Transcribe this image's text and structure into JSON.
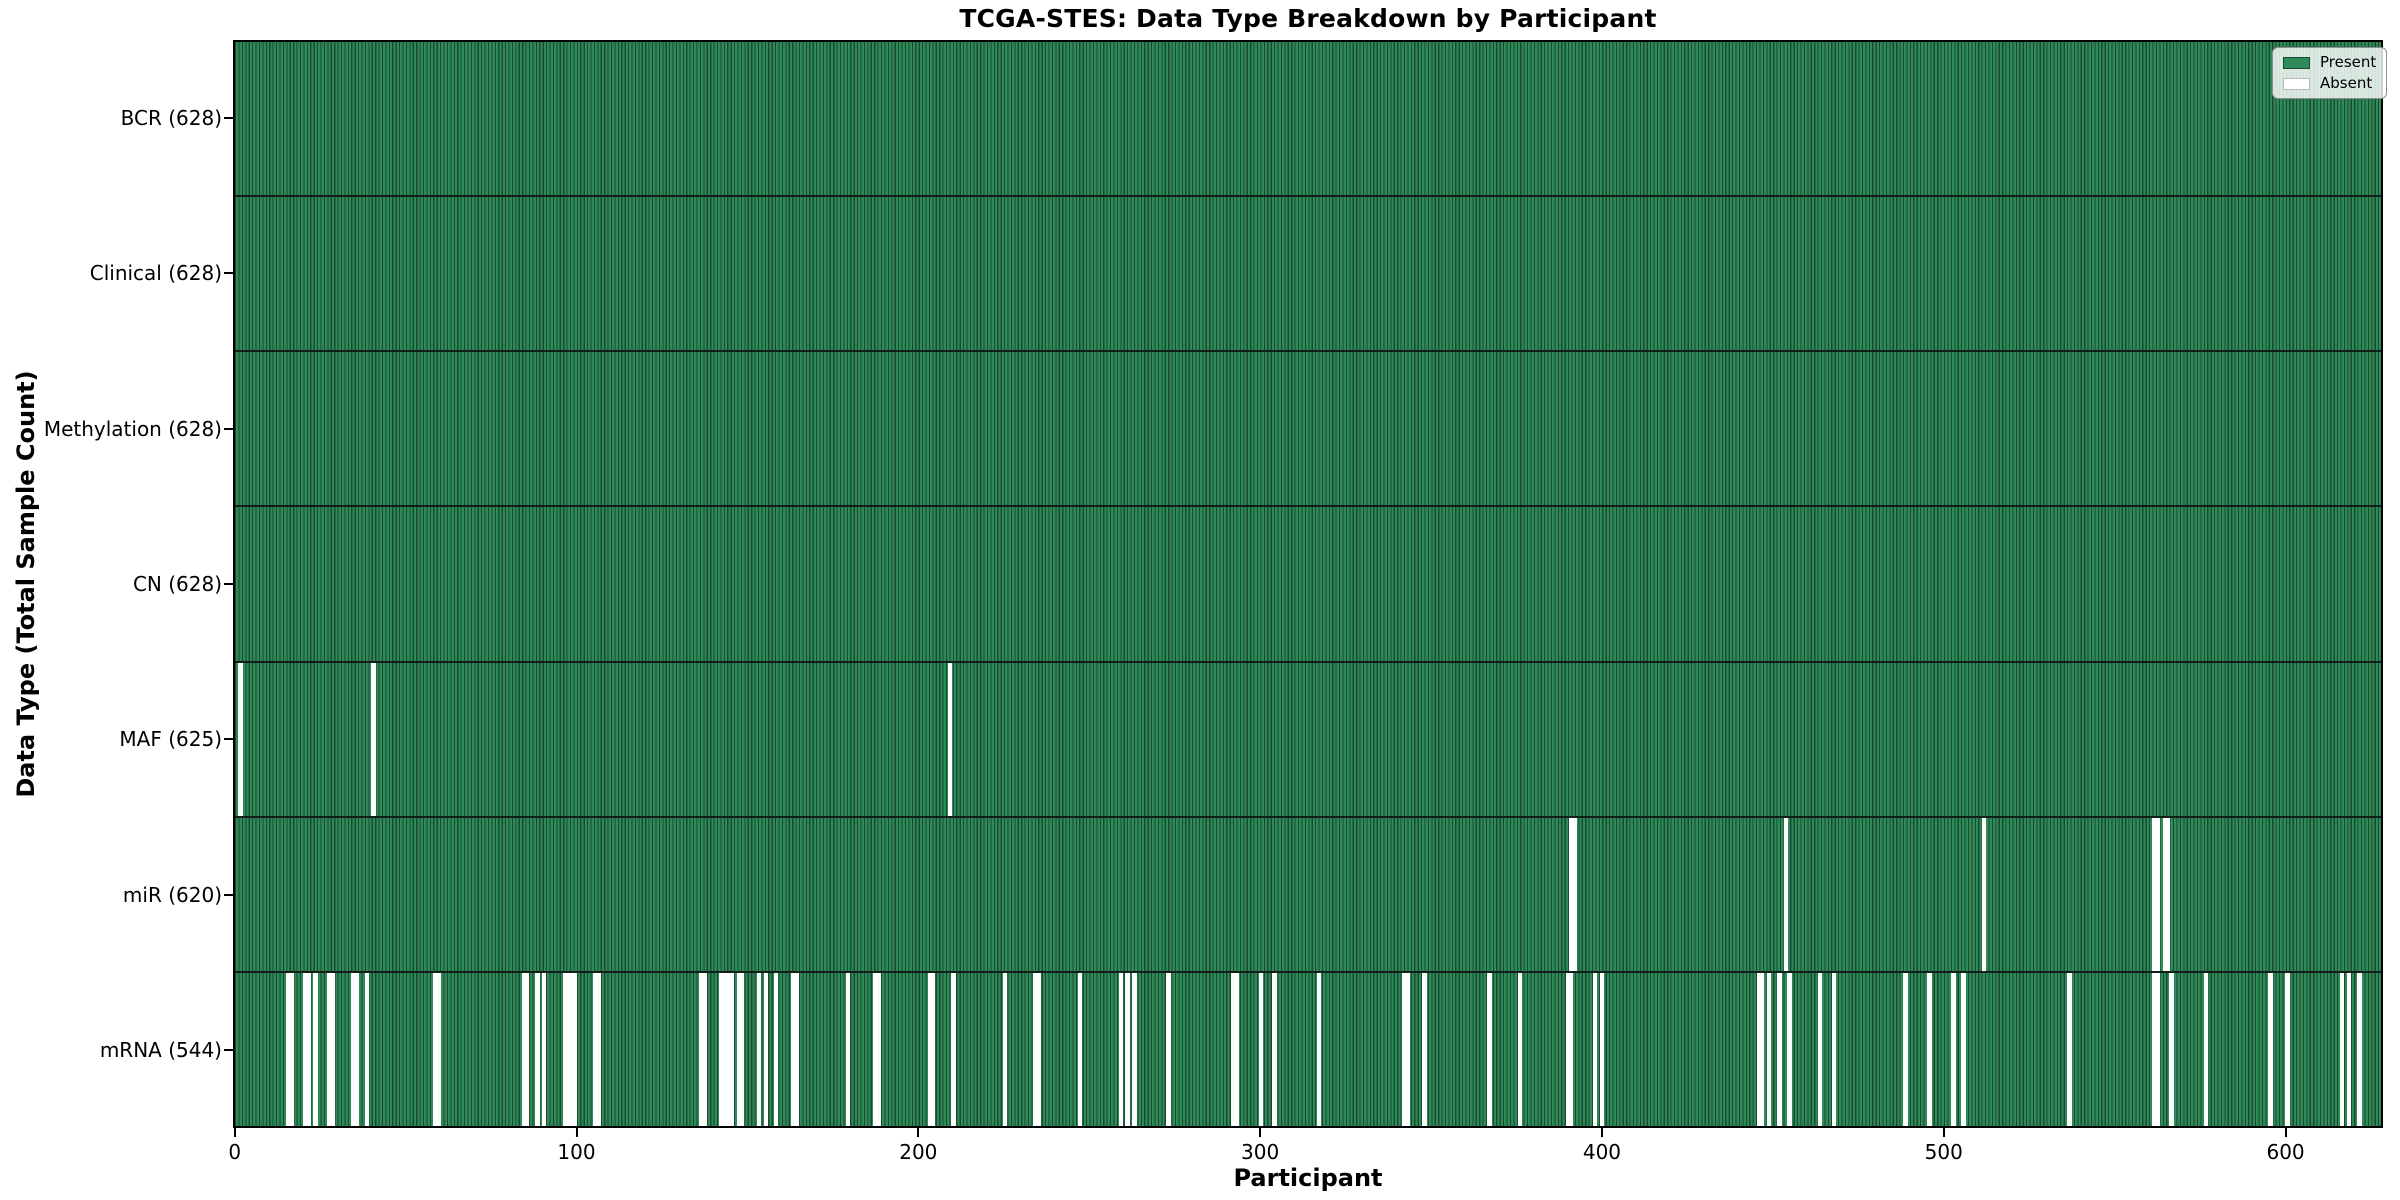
{
  "chart_data": {
    "type": "heatmap",
    "title": "TCGA-STES: Data Type Breakdown by Participant",
    "xlabel": "Participant",
    "ylabel": "Data Type (Total Sample Count)",
    "n_participants": 628,
    "x_ticks": [
      0,
      100,
      200,
      300,
      400,
      500,
      600
    ],
    "grid": false,
    "legend_position": "upper right",
    "legend": {
      "entries": [
        {
          "label": "Present",
          "color": "#2E8B57"
        },
        {
          "label": "Absent",
          "color": "#ffffff"
        }
      ]
    },
    "colors": {
      "present_fill": "#2E8B57",
      "bar_edge": "#1a4a33",
      "absent_fill": "#ffffff",
      "row_separator": "#121f18",
      "spine": "#000000"
    },
    "rows": [
      {
        "name": "bcr",
        "label": "BCR (628)",
        "total": 628,
        "absent": []
      },
      {
        "name": "clinical",
        "label": "Clinical (628)",
        "total": 628,
        "absent": []
      },
      {
        "name": "methylation",
        "label": "Methylation (628)",
        "total": 628,
        "absent": []
      },
      {
        "name": "cn",
        "label": "CN (628)",
        "total": 628,
        "absent": []
      },
      {
        "name": "maf",
        "label": "MAF (625)",
        "total": 625,
        "absent": [
          1,
          40,
          209
        ]
      },
      {
        "name": "mir",
        "label": "miR (620)",
        "total": 620,
        "absent": [
          391,
          392,
          454,
          512,
          562,
          563,
          565,
          566
        ]
      },
      {
        "name": "mrna",
        "label": "mRNA (544)",
        "total": 544,
        "absent": [
          15,
          16,
          20,
          21,
          23,
          27,
          28,
          34,
          35,
          38,
          58,
          59,
          84,
          85,
          88,
          90,
          96,
          97,
          98,
          99,
          105,
          106,
          136,
          137,
          142,
          143,
          144,
          145,
          147,
          148,
          153,
          155,
          158,
          163,
          164,
          179,
          187,
          188,
          203,
          204,
          210,
          225,
          234,
          235,
          247,
          259,
          261,
          263,
          273,
          292,
          293,
          300,
          304,
          317,
          342,
          343,
          348,
          367,
          376,
          390,
          391,
          398,
          400,
          446,
          447,
          449,
          452,
          455,
          464,
          468,
          489,
          496,
          503,
          506,
          537,
          562,
          563,
          567,
          577,
          596,
          601,
          617,
          619,
          622
        ]
      }
    ]
  }
}
